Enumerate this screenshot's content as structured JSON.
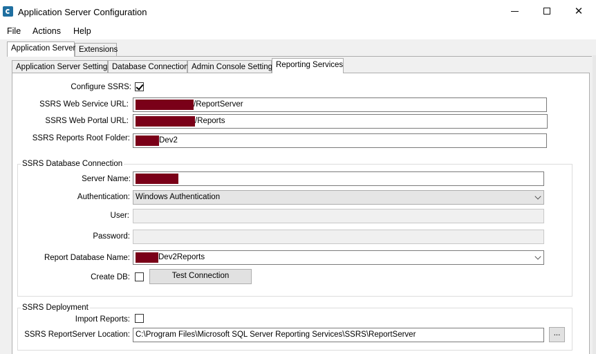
{
  "window": {
    "title": "Application Server Configuration"
  },
  "menu": {
    "file": "File",
    "actions": "Actions",
    "help": "Help"
  },
  "outer_tabs": {
    "application_server": "Application Server",
    "extensions": "Extensions"
  },
  "inner_tabs": {
    "app_server_settings": "Application Server Settings",
    "database_connection": "Database Connection",
    "admin_console_settings": "Admin Console Settings",
    "reporting_services": "Reporting Services"
  },
  "ssrs": {
    "configure_label": "Configure SSRS:",
    "configure_checked": true,
    "web_service_url_label": "SSRS Web Service URL:",
    "web_service_url_value": "/ReportServer",
    "web_portal_url_label": "SSRS Web Portal URL:",
    "web_portal_url_value": "/Reports",
    "reports_root_folder_label": "SSRS Reports Root Folder:",
    "reports_root_folder_value": "Dev2"
  },
  "db_connection": {
    "group_title": "SSRS Database Connection",
    "server_name_label": "Server Name:",
    "server_name_value": "",
    "authentication_label": "Authentication:",
    "authentication_value": "Windows Authentication",
    "user_label": "User:",
    "user_value": "",
    "password_label": "Password:",
    "password_value": "",
    "report_db_name_label": "Report Database Name:",
    "report_db_name_value": "Dev2Reports",
    "create_db_label": "Create DB:",
    "create_db_checked": false,
    "test_connection_label": "Test Connection"
  },
  "deployment": {
    "group_title": "SSRS Deployment",
    "import_reports_label": "Import Reports:",
    "import_reports_checked": false,
    "reportserver_location_label": "SSRS ReportServer Location:",
    "reportserver_location_value": "C:\\Program Files\\Microsoft SQL Server Reporting Services\\SSRS\\ReportServer",
    "browse_label": "..."
  },
  "colors": {
    "redaction": "#7a0018",
    "app_icon": "#1f6fa0"
  }
}
